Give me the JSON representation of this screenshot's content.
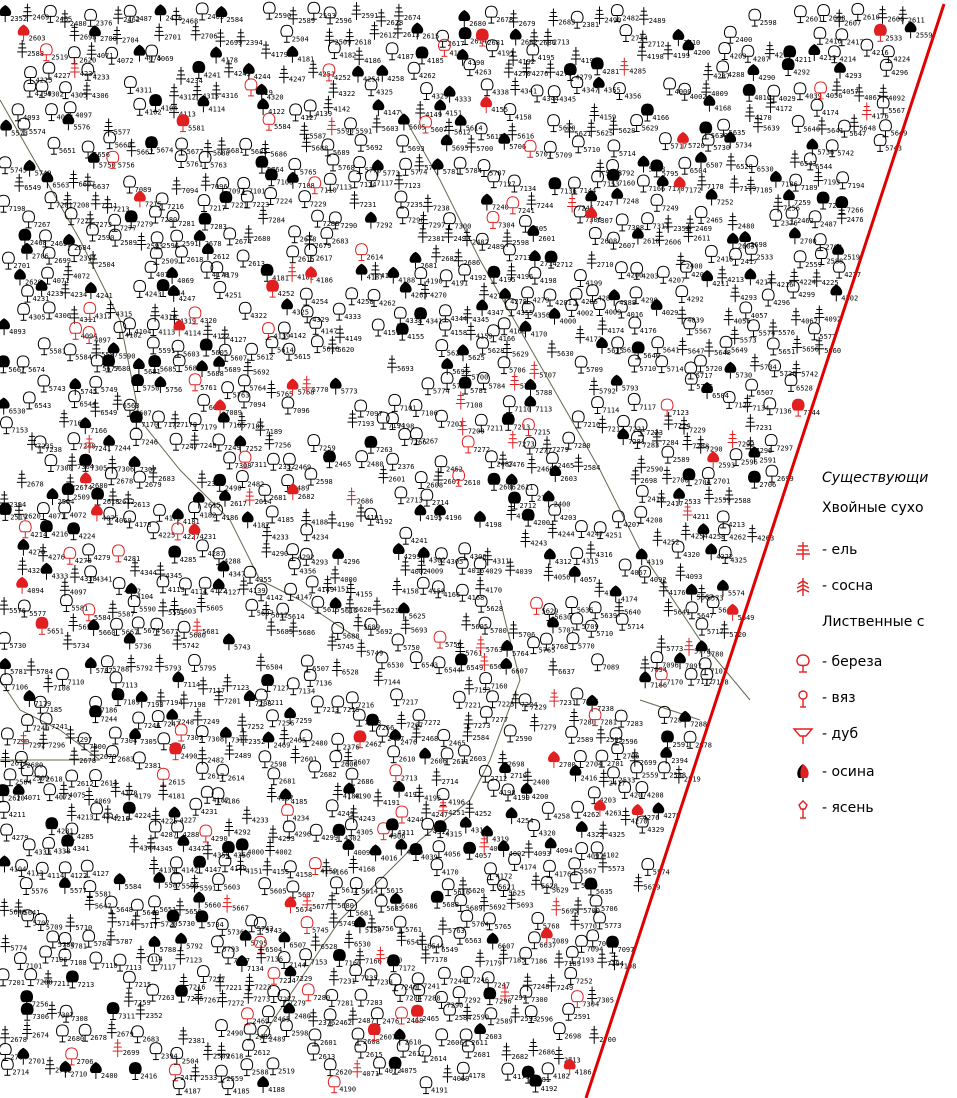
{
  "legend": {
    "title": "Существующи",
    "groups": [
      "Хвойные сухо",
      "Лиственные с"
    ],
    "items": [
      {
        "icon": "spruce-icon",
        "label": "- ель",
        "color": "#e02020"
      },
      {
        "icon": "pine-icon",
        "label": "- сосна",
        "color": "#e02020"
      },
      {
        "icon": "birch-icon",
        "label": "- береза",
        "color": "#e02020"
      },
      {
        "icon": "elm-icon",
        "label": "- вяз",
        "color": "#e02020"
      },
      {
        "icon": "oak-icon",
        "label": "- дуб",
        "color": "#e02020"
      },
      {
        "icon": "aspen-icon",
        "label": "- осина",
        "color": "#e02020"
      },
      {
        "icon": "ash-icon",
        "label": "- ясень",
        "color": "#e02020"
      }
    ]
  },
  "map": {
    "boundary_color": "#e00000",
    "path_color": "#6b6650",
    "symbol_color": "#000000",
    "accent_color": "#e02020",
    "tree_labels": [
      "2352",
      "2469",
      "2465",
      "2480",
      "2376",
      "2462",
      "2487",
      "2476",
      "2468",
      "2465",
      "2584",
      "2590",
      "2589",
      "2593",
      "2596",
      "2591",
      "2678",
      "2674",
      "2680",
      "2678",
      "2679",
      "2683",
      "2381",
      "2490",
      "2482",
      "2489",
      "2598",
      "2601",
      "2608",
      "2607",
      "2610",
      "2606",
      "2611",
      "2603",
      "2698",
      "2700",
      "2704",
      "2701",
      "2706",
      "2699",
      "2394",
      "2504",
      "2509",
      "2618",
      "2612",
      "2613",
      "2615",
      "2617",
      "2614",
      "2681",
      "2682",
      "2686",
      "2713",
      "2714",
      "2712",
      "2710",
      "2400",
      "2416",
      "2417",
      "2533",
      "2559",
      "2588",
      "2519",
      "2620",
      "4071",
      "4072",
      "4075",
      "4069",
      "4178",
      "4179",
      "4181",
      "4182",
      "4186",
      "4187",
      "4185",
      "4188",
      "4190",
      "4191",
      "4192",
      "4195",
      "4196",
      "4198",
      "4199",
      "4200",
      "4203",
      "4207",
      "4208",
      "4211",
      "4213",
      "4214",
      "4216",
      "4224",
      "4225",
      "4227",
      "4231",
      "4233",
      "4234",
      "4241",
      "4243",
      "4244",
      "4247",
      "4251",
      "4252",
      "4254",
      "4258",
      "4262",
      "4263",
      "4270",
      "4276",
      "4278",
      "4279",
      "4281",
      "4285",
      "4287",
      "4288",
      "4290",
      "4292",
      "4293",
      "4296",
      "4299",
      "4302",
      "4305",
      "4306",
      "4311",
      "4312",
      "4315",
      "4316",
      "4319",
      "4320",
      "4322",
      "4325",
      "4329",
      "4333",
      "4338",
      "4341",
      "4344",
      "4345",
      "4347",
      "4355",
      "4356",
      "4000",
      "4002",
      "4009",
      "4016",
      "4029",
      "4039",
      "4056",
      "4057",
      "4067",
      "4092",
      "4093",
      "4094",
      "4097",
      "4102",
      "4104",
      "4113",
      "4114",
      "4122",
      "4127",
      "4139",
      "4142",
      "4147",
      "4149",
      "4151",
      "4155",
      "4158",
      "4159",
      "4166",
      "4168",
      "4170",
      "4172",
      "4174",
      "4176",
      "5567",
      "5573",
      "5574",
      "5576",
      "5577",
      "5581",
      "5584",
      "5587",
      "5590",
      "5591",
      "5603",
      "5605",
      "5607",
      "5612",
      "5614",
      "5615",
      "5616",
      "5620",
      "5621",
      "5625",
      "5628",
      "5629",
      "5630",
      "5635",
      "5639",
      "5640",
      "5641",
      "5647",
      "5648",
      "5649",
      "5651",
      "5656",
      "5660",
      "5667",
      "5674",
      "5677",
      "5680",
      "5681",
      "5685",
      "5686",
      "5688",
      "5689",
      "5692",
      "5693",
      "5695",
      "5700",
      "5706",
      "5707",
      "5709",
      "5710",
      "5714",
      "5717",
      "5720",
      "5730",
      "5734",
      "5736",
      "5742",
      "5743",
      "5745",
      "5749",
      "5750",
      "5756",
      "5761",
      "5763",
      "5764",
      "5765",
      "5768",
      "5770",
      "5773",
      "5774",
      "5780",
      "5781",
      "5784",
      "5787",
      "5788",
      "5792",
      "5793",
      "5795",
      "6504",
      "6507",
      "6528",
      "6530",
      "6543",
      "6544",
      "6549",
      "6563",
      "6607",
      "6637",
      "7089",
      "7094",
      "7096",
      "7097",
      "7101",
      "7106",
      "7108",
      "7110",
      "7113",
      "7114",
      "7117",
      "7123",
      "7127",
      "7134",
      "7136",
      "7144",
      "7153",
      "7160",
      "7166",
      "7170",
      "7172",
      "7178",
      "7179",
      "7185",
      "7186",
      "7189",
      "7193",
      "7194",
      "7198",
      "7201",
      "7208",
      "7211",
      "7213",
      "7215",
      "7216",
      "7217",
      "7221",
      "7223",
      "7224",
      "7229",
      "7231",
      "7235",
      "7238",
      "7240",
      "7241",
      "7244",
      "7246",
      "7247",
      "7248",
      "7249",
      "7252",
      "7256",
      "7259",
      "7263",
      "7266",
      "7267",
      "7272",
      "7273",
      "7277",
      "7279",
      "7280",
      "7281",
      "7283",
      "7284",
      "7288",
      "7290",
      "7292",
      "7296",
      "7297",
      "7300",
      "7304",
      "7305",
      "7306",
      "7307",
      "7308",
      "7311"
    ]
  }
}
